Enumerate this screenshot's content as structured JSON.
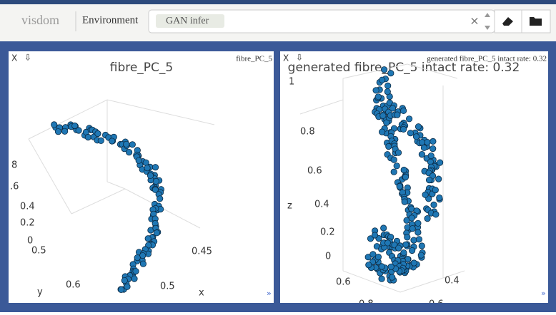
{
  "header": {
    "brand": "visdom",
    "env_label": "Environment",
    "env_tag": "GAN infer",
    "clear": "×"
  },
  "panels": [
    {
      "close": "X",
      "download": "⇩",
      "tab_title": "fibre_PC_5",
      "plot_title": "fibre_PC_5",
      "tick_labels": [
        "8",
        ".6",
        "0.4",
        "0.2",
        "0",
        "0.5",
        "0.6",
        "y",
        "0.45",
        "0.5",
        "x"
      ],
      "corner": "»"
    },
    {
      "close": "X",
      "download": "⇩",
      "tab_title": "generated fibre_PC_5 intact rate: 0.32",
      "plot_title": "generated fibre_PC_5 intact rate: 0.32",
      "tick_labels": [
        "1",
        "0.8",
        "0.6",
        "z",
        "0.4",
        "0.2",
        "0",
        "0.6",
        "0.4",
        "0.8",
        "0.6"
      ],
      "corner": "»"
    }
  ]
}
